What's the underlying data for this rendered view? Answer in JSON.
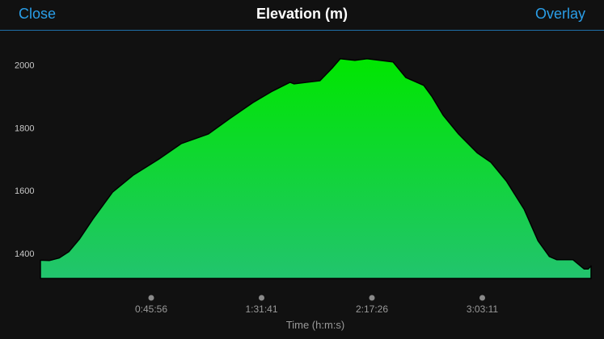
{
  "navbar": {
    "close_label": "Close",
    "title": "Elevation (m)",
    "overlay_label": "Overlay"
  },
  "colors": {
    "background": "#111111",
    "accent": "#2a9ee8",
    "fill_top": "#00e600",
    "fill_bottom": "#22c46e",
    "outline": "#000000"
  },
  "chart_data": {
    "type": "area",
    "title": "Elevation (m)",
    "xlabel": "Time (h:m:s)",
    "ylabel": "",
    "x_tick_labels": [
      "0:45:56",
      "1:31:41",
      "2:17:26",
      "3:03:11"
    ],
    "x_tick_values": [
      2756,
      5501,
      8246,
      10991
    ],
    "xlim": [
      0,
      13697
    ],
    "y_tick_labels": [
      "1400",
      "1600",
      "1800",
      "2000"
    ],
    "y_tick_values": [
      1400,
      1600,
      1800,
      2000
    ],
    "ylim": [
      1320,
      2130
    ],
    "grid": false,
    "x_unit": "seconds",
    "series": [
      {
        "x": [
          0,
          222,
          463,
          705,
          967,
          1310,
          1794,
          2318,
          2943,
          3507,
          4173,
          4717,
          5281,
          5745,
          6209,
          6309,
          6954,
          7256,
          7458,
          7821,
          8124,
          8769,
          9091,
          9535,
          9736,
          10019,
          10402,
          10865,
          11208,
          11591,
          12034,
          12377,
          12659,
          12841,
          13244,
          13526,
          13626,
          13697
        ],
        "y": [
          1378,
          1377,
          1385,
          1405,
          1445,
          1510,
          1595,
          1650,
          1700,
          1750,
          1780,
          1830,
          1880,
          1915,
          1945,
          1940,
          1950,
          1990,
          2020,
          2015,
          2020,
          2010,
          1960,
          1935,
          1900,
          1840,
          1780,
          1720,
          1690,
          1630,
          1540,
          1440,
          1390,
          1380,
          1380,
          1350,
          1350,
          1360
        ]
      }
    ]
  }
}
